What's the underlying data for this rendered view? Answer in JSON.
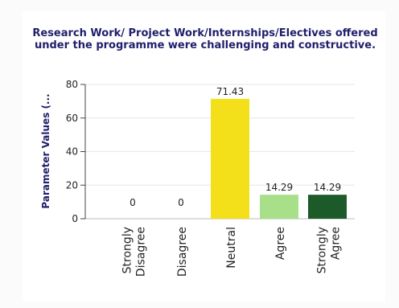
{
  "chart_data": {
    "type": "bar",
    "title": "Research Work/ Project Work/Internships/Electives offered under the programme were challenging and constructive.",
    "ylabel": "Parameter Values (...",
    "xlabel": "",
    "ylim": [
      0,
      80
    ],
    "yticks": [
      0,
      20,
      40,
      60,
      80
    ],
    "grid": true,
    "categories": [
      "Strongly Disagree",
      "Disagree",
      "Neutral",
      "Agree",
      "Strongly Agree"
    ],
    "category_lines": [
      [
        "Strongly",
        "Disagree"
      ],
      [
        "Disagree"
      ],
      [
        "Neutral"
      ],
      [
        "Agree"
      ],
      [
        "Strongly",
        "Agree"
      ]
    ],
    "values": [
      0,
      0,
      71.43,
      14.29,
      14.29
    ],
    "value_labels": [
      "0",
      "0",
      "71.43",
      "14.29",
      "14.29"
    ],
    "colors": [
      "#c8c8c8",
      "#c8c8c8",
      "#f4e01a",
      "#a8e08a",
      "#1d5a2a"
    ]
  }
}
